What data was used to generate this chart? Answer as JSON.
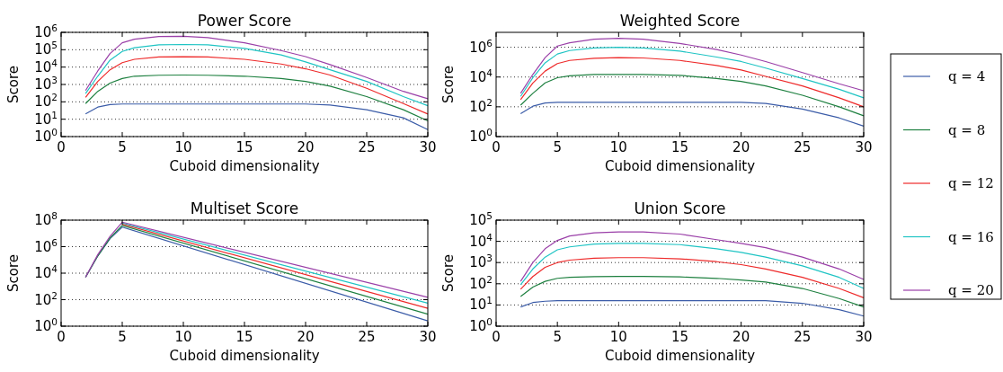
{
  "chart_data": [
    {
      "type": "line",
      "title": "Power Score",
      "xlabel": "Cuboid dimensionality",
      "ylabel": "Score",
      "log": "y",
      "grid": "y",
      "line_style": "solid",
      "legend": "right",
      "x": [
        2,
        3,
        4,
        5,
        6,
        8,
        10,
        12,
        15,
        18,
        20,
        22,
        25,
        28,
        30
      ],
      "xlim": [
        0,
        30
      ],
      "xticks": [
        0,
        5,
        10,
        15,
        20,
        25,
        30
      ],
      "ylim": [
        1,
        1000000
      ],
      "yticks": [
        {
          "value": 1,
          "label": "10$^{0}$"
        },
        {
          "value": 10,
          "label": "10$^{1}$"
        },
        {
          "value": 100,
          "label": "10$^{2}$"
        },
        {
          "value": 1000,
          "label": "10$^{3}$"
        },
        {
          "value": 10000,
          "label": "10$^{4}$"
        },
        {
          "value": 100000,
          "label": "10$^{5}$"
        },
        {
          "value": 1000000,
          "label": "10$^{6}$"
        }
      ],
      "series": [
        {
          "name": "q = 4",
          "color": "#3b5ca8",
          "values": [
            20,
            50,
            70,
            75,
            75,
            75,
            75,
            75,
            75,
            75,
            75,
            65,
            35,
            12,
            2.5
          ]
        },
        {
          "name": "q = 8",
          "color": "#1e8040",
          "values": [
            80,
            400,
            1200,
            2200,
            3000,
            3400,
            3500,
            3400,
            3000,
            2200,
            1500,
            800,
            200,
            35,
            8
          ]
        },
        {
          "name": "q = 12",
          "color": "#ee2a2a",
          "values": [
            180,
            1500,
            7000,
            18000,
            28000,
            38000,
            40000,
            38000,
            28000,
            15000,
            8000,
            3500,
            600,
            80,
            20
          ]
        },
        {
          "name": "q = 16",
          "color": "#1fc4c4",
          "values": [
            300,
            3000,
            25000,
            80000,
            130000,
            190000,
            200000,
            190000,
            120000,
            50000,
            20000,
            7000,
            1500,
            200,
            60
          ]
        },
        {
          "name": "q = 20",
          "color": "#9a3fa8",
          "values": [
            450,
            6000,
            60000,
            250000,
            400000,
            580000,
            600000,
            500000,
            250000,
            90000,
            40000,
            14000,
            2500,
            400,
            150
          ]
        }
      ]
    },
    {
      "type": "line",
      "title": "Weighted Score",
      "xlabel": "Cuboid dimensionality",
      "ylabel": "Score",
      "log": "y",
      "grid": "y",
      "line_style": "solid",
      "legend": "right",
      "x": [
        2,
        3,
        4,
        5,
        6,
        8,
        10,
        12,
        15,
        18,
        20,
        22,
        25,
        28,
        30
      ],
      "xlim": [
        0,
        30
      ],
      "xticks": [
        0,
        5,
        10,
        15,
        20,
        25,
        30
      ],
      "ylim": [
        1,
        10000000
      ],
      "yticks": [
        {
          "value": 1,
          "label": "10$^{0}$"
        },
        {
          "value": 100,
          "label": "10$^{2}$"
        },
        {
          "value": 10000,
          "label": "10$^{4}$"
        },
        {
          "value": 1000000,
          "label": "10$^{6}$"
        }
      ],
      "series": [
        {
          "name": "q = 4",
          "color": "#3b5ca8",
          "values": [
            35,
            110,
            180,
            200,
            200,
            200,
            200,
            200,
            200,
            200,
            200,
            170,
            70,
            18,
            5
          ]
        },
        {
          "name": "q = 8",
          "color": "#1e8040",
          "values": [
            130,
            800,
            4000,
            9000,
            12000,
            15000,
            15000,
            15000,
            13000,
            8000,
            5000,
            2500,
            600,
            100,
            25
          ]
        },
        {
          "name": "q = 12",
          "color": "#ee2a2a",
          "values": [
            300,
            4000,
            25000,
            80000,
            130000,
            180000,
            200000,
            190000,
            130000,
            60000,
            30000,
            11000,
            2500,
            400,
            100
          ]
        },
        {
          "name": "q = 16",
          "color": "#1fc4c4",
          "values": [
            500,
            9000,
            90000,
            350000,
            600000,
            900000,
            1000000,
            900000,
            550000,
            220000,
            110000,
            40000,
            8000,
            1500,
            400
          ]
        },
        {
          "name": "q = 20",
          "color": "#9a3fa8",
          "values": [
            800,
            15000,
            200000,
            1200000,
            2000000,
            3500000,
            4000000,
            3500000,
            1800000,
            700000,
            300000,
            110000,
            20000,
            3500,
            1200
          ]
        }
      ]
    },
    {
      "type": "line",
      "title": "Multiset Score",
      "xlabel": "Cuboid dimensionality",
      "ylabel": "Score",
      "log": "y",
      "grid": "y",
      "line_style": "solid",
      "legend": "right",
      "x": [
        2,
        3,
        4,
        5,
        30
      ],
      "xlim": [
        0,
        30
      ],
      "xticks": [
        0,
        5,
        10,
        15,
        20,
        25,
        30
      ],
      "ylim": [
        1,
        100000000
      ],
      "yticks": [
        {
          "value": 1,
          "label": "10$^{0}$"
        },
        {
          "value": 100,
          "label": "10$^{2}$"
        },
        {
          "value": 10000,
          "label": "10$^{4}$"
        },
        {
          "value": 1000000,
          "label": "10$^{6}$"
        },
        {
          "value": 100000000,
          "label": "10$^{8}$"
        }
      ],
      "series": [
        {
          "name": "q = 4",
          "color": "#3b5ca8",
          "values": [
            5000,
            200000,
            4000000,
            30000000,
            2.5
          ]
        },
        {
          "name": "q = 8",
          "color": "#1e8040",
          "values": [
            5000,
            200000,
            4500000,
            40000000,
            8
          ]
        },
        {
          "name": "q = 12",
          "color": "#ee2a2a",
          "values": [
            null,
            null,
            null,
            50000000,
            22
          ]
        },
        {
          "name": "q = 16",
          "color": "#1fc4c4",
          "values": [
            null,
            null,
            null,
            60000000,
            55
          ]
        },
        {
          "name": "q = 20",
          "color": "#9a3fa8",
          "values": [
            5000,
            250000,
            6000000,
            70000000,
            150
          ]
        }
      ]
    },
    {
      "type": "line",
      "title": "Union Score",
      "xlabel": "Cuboid dimensionality",
      "ylabel": "Score",
      "log": "y",
      "grid": "y",
      "line_style": "solid",
      "legend": "right",
      "x": [
        2,
        3,
        4,
        5,
        6,
        8,
        10,
        12,
        15,
        18,
        20,
        22,
        25,
        28,
        30
      ],
      "xlim": [
        0,
        30
      ],
      "xticks": [
        0,
        5,
        10,
        15,
        20,
        25,
        30
      ],
      "ylim": [
        1,
        100000
      ],
      "yticks": [
        {
          "value": 1,
          "label": "10$^{0}$"
        },
        {
          "value": 10,
          "label": "10$^{1}$"
        },
        {
          "value": 100,
          "label": "10$^{2}$"
        },
        {
          "value": 1000,
          "label": "10$^{3}$"
        },
        {
          "value": 10000,
          "label": "10$^{4}$"
        },
        {
          "value": 100000,
          "label": "10$^{5}$"
        }
      ],
      "series": [
        {
          "name": "q = 4",
          "color": "#3b5ca8",
          "values": [
            8,
            13,
            15,
            16,
            16,
            16,
            16,
            16,
            16,
            16,
            16,
            16,
            12,
            6,
            3
          ]
        },
        {
          "name": "q = 8",
          "color": "#1e8040",
          "values": [
            25,
            70,
            130,
            180,
            200,
            215,
            220,
            220,
            210,
            180,
            150,
            120,
            60,
            20,
            8
          ]
        },
        {
          "name": "q = 12",
          "color": "#ee2a2a",
          "values": [
            55,
            220,
            600,
            1000,
            1300,
            1600,
            1700,
            1700,
            1500,
            1100,
            800,
            500,
            200,
            60,
            22
          ]
        },
        {
          "name": "q = 16",
          "color": "#1fc4c4",
          "values": [
            90,
            500,
            1800,
            4000,
            5500,
            7500,
            8000,
            8000,
            7000,
            4500,
            3000,
            1800,
            700,
            200,
            60
          ]
        },
        {
          "name": "q = 20",
          "color": "#9a3fa8",
          "values": [
            130,
            1000,
            4500,
            11000,
            18000,
            25000,
            28000,
            28000,
            22000,
            12000,
            8000,
            5000,
            1800,
            500,
            160
          ]
        }
      ]
    }
  ]
}
